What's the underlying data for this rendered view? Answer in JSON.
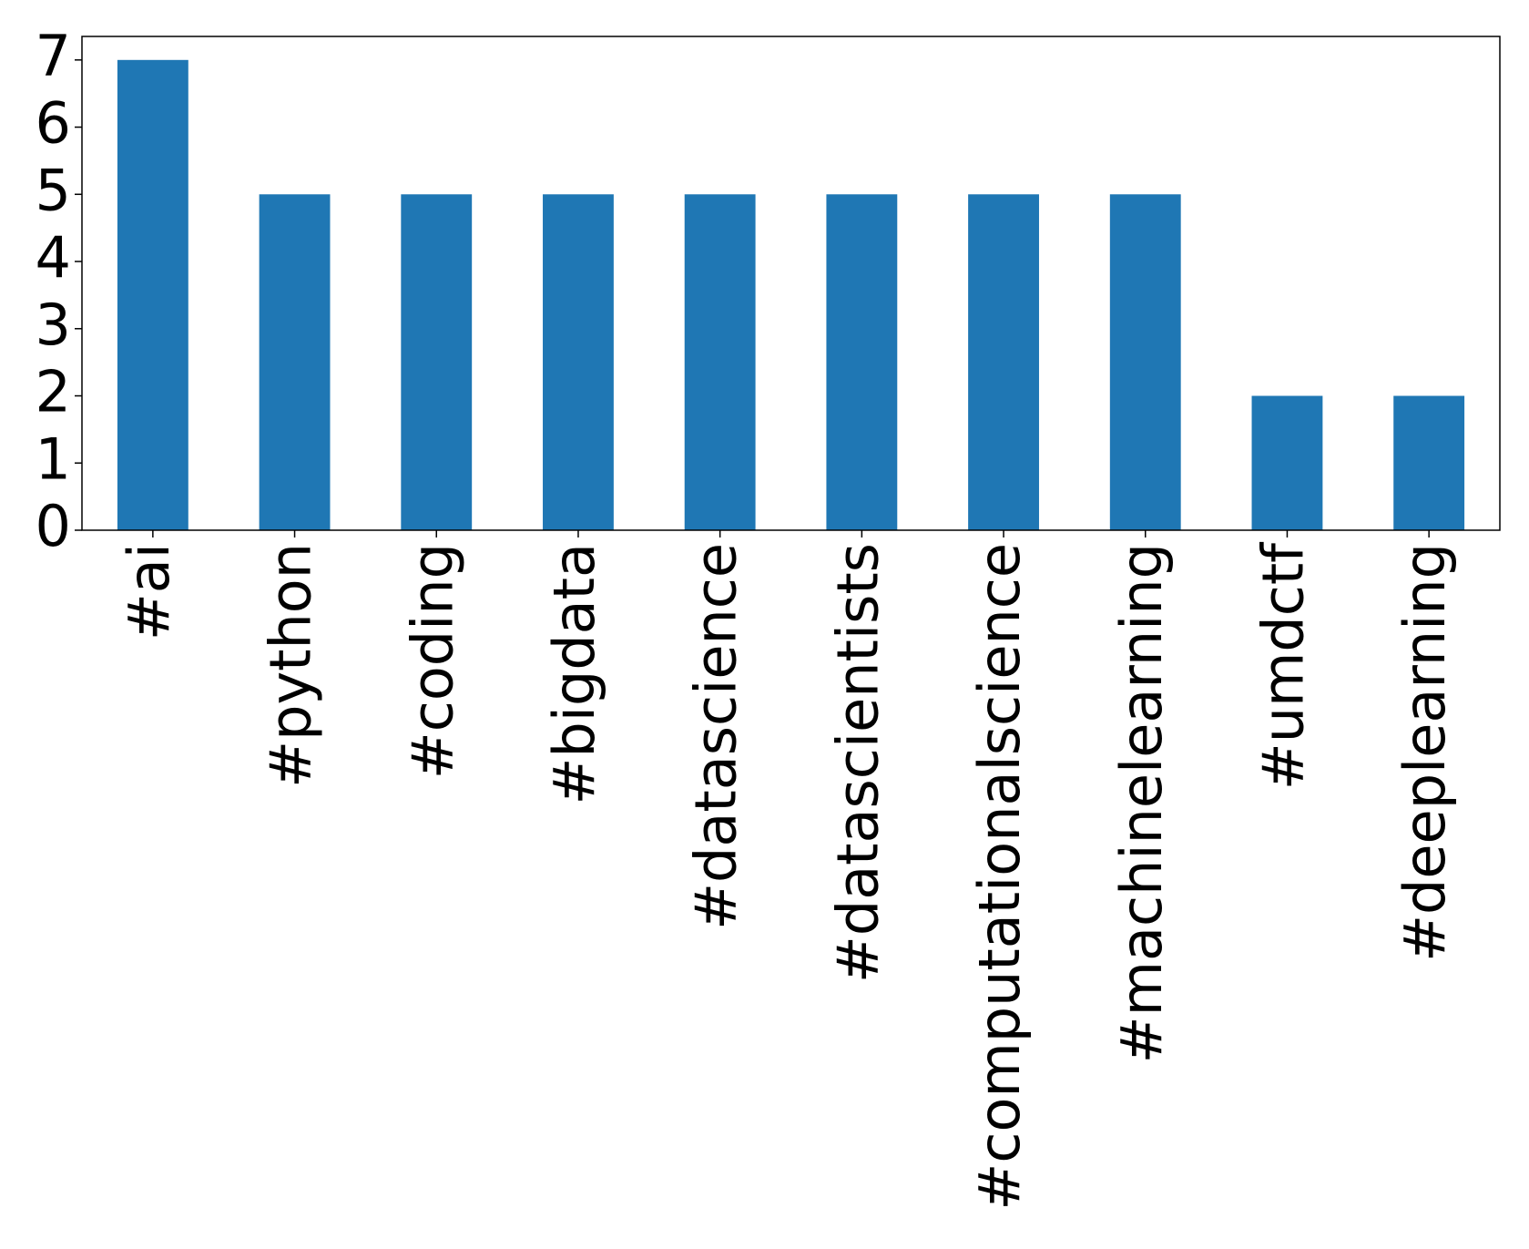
{
  "chart_data": {
    "type": "bar",
    "categories": [
      "#ai",
      "#python",
      "#coding",
      "#bigdata",
      "#datascience",
      "#datascientists",
      "#computationalscience",
      "#machinelearning",
      "#umdctf",
      "#deeplearning"
    ],
    "values": [
      7,
      5,
      5,
      5,
      5,
      5,
      5,
      5,
      2,
      2
    ],
    "color": "#1f77b4",
    "ylim": [
      0,
      7.35
    ],
    "yticks": [
      0,
      1,
      2,
      3,
      4,
      5,
      6,
      7
    ],
    "grid": false
  }
}
